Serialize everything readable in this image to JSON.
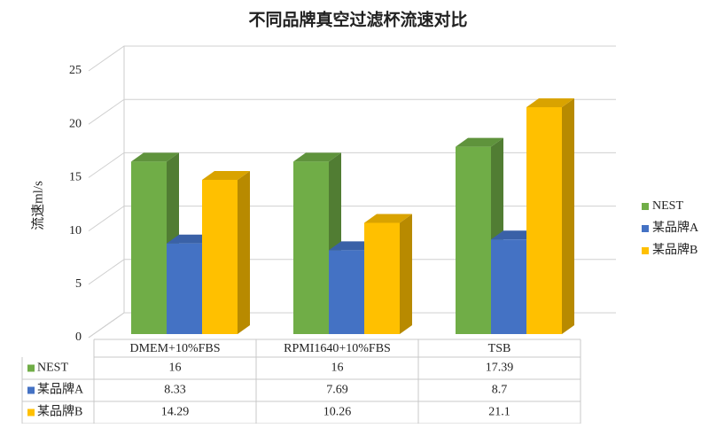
{
  "chart_data": {
    "type": "bar3d",
    "title": "不同品牌真空过滤杯流速对比",
    "y_label": "流速ml/s",
    "categories": [
      "DMEM+10%FBS",
      "RPMI1640+10%FBS",
      "TSB"
    ],
    "series": [
      {
        "name": "NEST",
        "color": "#70ad47",
        "values": [
          16,
          16,
          17.39
        ]
      },
      {
        "name": "某品牌A",
        "color": "#4472c4",
        "values": [
          8.33,
          7.69,
          8.7
        ]
      },
      {
        "name": "某品牌B",
        "color": "#ffc000",
        "values": [
          14.29,
          10.26,
          21.1
        ]
      }
    ],
    "ylim": [
      0,
      25
    ],
    "yticks": [
      0,
      5,
      10,
      15,
      20,
      25
    ],
    "grid": true,
    "legend": "right",
    "data_table": true
  }
}
